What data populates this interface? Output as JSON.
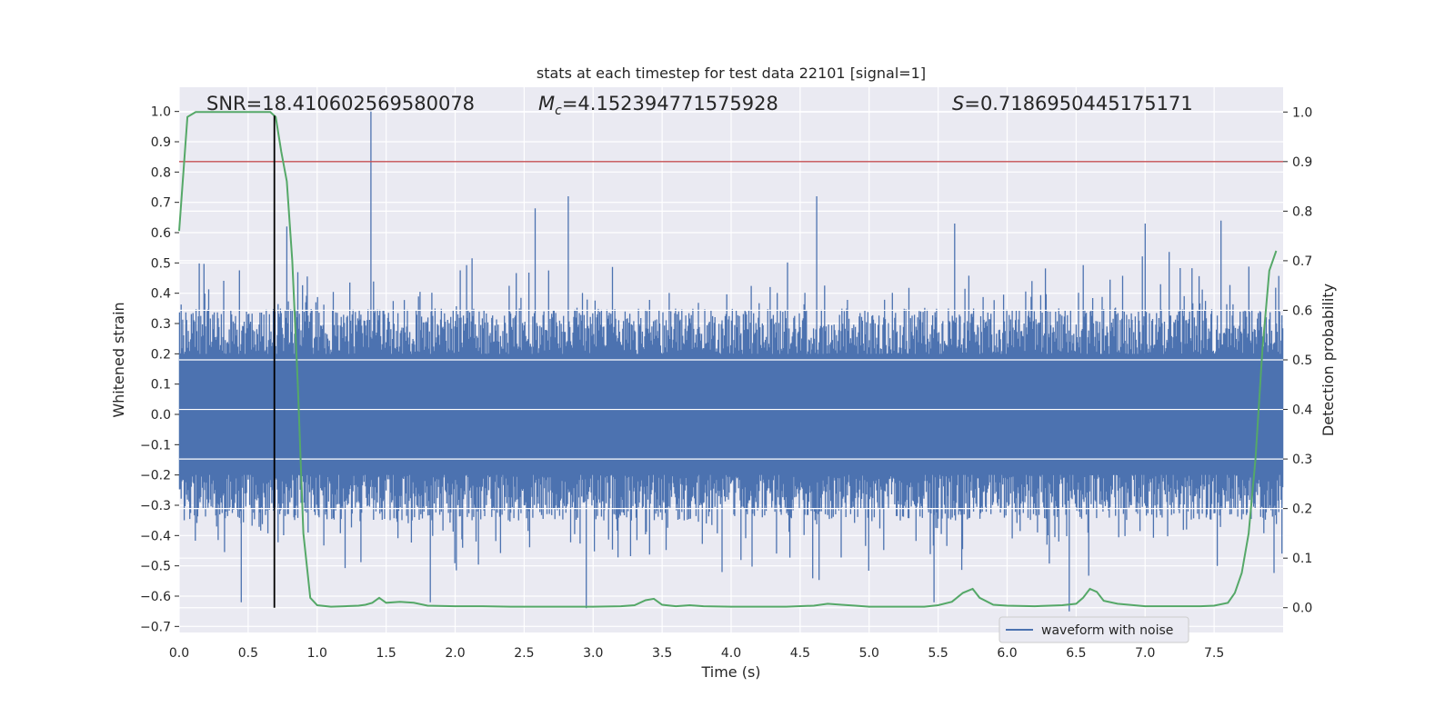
{
  "chart_data": {
    "type": "line",
    "title": "stats at each timestep for test data 22101 [signal=1]",
    "xlabel": "Time (s)",
    "ylabel": "Whitened strain",
    "y2label": "Detection probability",
    "xlim": [
      0.0,
      8.0
    ],
    "ylim": [
      -0.72,
      1.08
    ],
    "y2lim": [
      -0.05,
      1.05
    ],
    "xticks": [
      "0.0",
      "0.5",
      "1.0",
      "1.5",
      "2.0",
      "2.5",
      "3.0",
      "3.5",
      "4.0",
      "4.5",
      "5.0",
      "5.5",
      "6.0",
      "6.5",
      "7.0",
      "7.5"
    ],
    "xtick_values": [
      0.0,
      0.5,
      1.0,
      1.5,
      2.0,
      2.5,
      3.0,
      3.5,
      4.0,
      4.5,
      5.0,
      5.5,
      6.0,
      6.5,
      7.0,
      7.5
    ],
    "yticks": [
      "1.0",
      "0.9",
      "0.8",
      "0.7",
      "0.6",
      "0.5",
      "0.4",
      "0.3",
      "0.2",
      "0.1",
      "0.0",
      "−0.1",
      "−0.2",
      "−0.3",
      "−0.4",
      "−0.5",
      "−0.6",
      "−0.7"
    ],
    "ytick_values": [
      1.0,
      0.9,
      0.8,
      0.7,
      0.6,
      0.5,
      0.4,
      0.3,
      0.2,
      0.1,
      0.0,
      -0.1,
      -0.2,
      -0.3,
      -0.4,
      -0.5,
      -0.6,
      -0.7
    ],
    "y2ticks": [
      "1.0",
      "0.9",
      "0.8",
      "0.7",
      "0.6",
      "0.5",
      "0.4",
      "0.3",
      "0.2",
      "0.1",
      "0.0"
    ],
    "y2tick_values": [
      1.0,
      0.9,
      0.8,
      0.7,
      0.6,
      0.5,
      0.4,
      0.3,
      0.2,
      0.1,
      0.0
    ],
    "annotations": {
      "snr": "SNR=18.410602569580078",
      "mc_symbol": "M",
      "mc_sub": "c",
      "mc_value": "=4.152394771575928",
      "s_symbol": "S",
      "s_value": "=0.7186950445175171"
    },
    "legend": {
      "entries": [
        "waveform with noise"
      ],
      "placement": "lower-right"
    },
    "grid": true,
    "colors": {
      "background": "#eaeaf2",
      "grid": "#ffffff",
      "waveform": "#4c72b0",
      "probability": "#55a868",
      "threshold": "#c44e52",
      "marker": "#000000"
    },
    "series": [
      {
        "name": "waveform with noise",
        "axis": "left",
        "kind": "noise-envelope",
        "typical_amplitude": 0.35,
        "peaks": [
          {
            "x": 1.39,
            "y": 1.0
          },
          {
            "x": 2.82,
            "y": 0.72
          },
          {
            "x": 4.62,
            "y": 0.72
          },
          {
            "x": 2.58,
            "y": 0.68
          },
          {
            "x": 7.55,
            "y": 0.64
          },
          {
            "x": 0.78,
            "y": 0.62
          },
          {
            "x": 5.62,
            "y": 0.63
          },
          {
            "x": 7.0,
            "y": 0.63
          },
          {
            "x": 2.95,
            "y": -0.64
          },
          {
            "x": 0.45,
            "y": -0.62
          },
          {
            "x": 1.82,
            "y": -0.62
          },
          {
            "x": 6.45,
            "y": -0.65
          },
          {
            "x": 5.47,
            "y": -0.62
          }
        ]
      },
      {
        "name": "",
        "axis": "right",
        "x": [
          0.0,
          0.06,
          0.12,
          0.2,
          0.3,
          0.4,
          0.5,
          0.6,
          0.66,
          0.7,
          0.74,
          0.78,
          0.82,
          0.86,
          0.9,
          0.95,
          1.0,
          1.1,
          1.2,
          1.3,
          1.35,
          1.4,
          1.45,
          1.5,
          1.6,
          1.7,
          1.8,
          2.0,
          2.2,
          2.4,
          2.6,
          2.8,
          3.0,
          3.2,
          3.3,
          3.38,
          3.44,
          3.5,
          3.6,
          3.7,
          3.8,
          4.0,
          4.2,
          4.4,
          4.6,
          4.7,
          4.8,
          4.9,
          5.0,
          5.2,
          5.4,
          5.5,
          5.6,
          5.68,
          5.75,
          5.8,
          5.9,
          6.0,
          6.2,
          6.4,
          6.5,
          6.55,
          6.6,
          6.65,
          6.7,
          6.8,
          7.0,
          7.2,
          7.4,
          7.5,
          7.6,
          7.65,
          7.7,
          7.75,
          7.8,
          7.85,
          7.9,
          7.95
        ],
        "values": [
          0.76,
          0.99,
          1.0,
          1.0,
          1.0,
          1.0,
          1.0,
          1.0,
          1.0,
          0.99,
          0.92,
          0.86,
          0.7,
          0.45,
          0.15,
          0.02,
          0.005,
          0.002,
          0.003,
          0.004,
          0.006,
          0.01,
          0.02,
          0.01,
          0.012,
          0.01,
          0.004,
          0.003,
          0.003,
          0.002,
          0.002,
          0.002,
          0.002,
          0.003,
          0.005,
          0.015,
          0.018,
          0.006,
          0.003,
          0.005,
          0.003,
          0.002,
          0.002,
          0.002,
          0.004,
          0.008,
          0.006,
          0.004,
          0.002,
          0.002,
          0.002,
          0.005,
          0.012,
          0.03,
          0.038,
          0.02,
          0.006,
          0.004,
          0.003,
          0.005,
          0.008,
          0.02,
          0.038,
          0.032,
          0.014,
          0.008,
          0.003,
          0.003,
          0.003,
          0.004,
          0.01,
          0.03,
          0.07,
          0.15,
          0.3,
          0.52,
          0.68,
          0.72
        ]
      }
    ],
    "threshold_value": 0.9,
    "marker_x": 0.69
  }
}
